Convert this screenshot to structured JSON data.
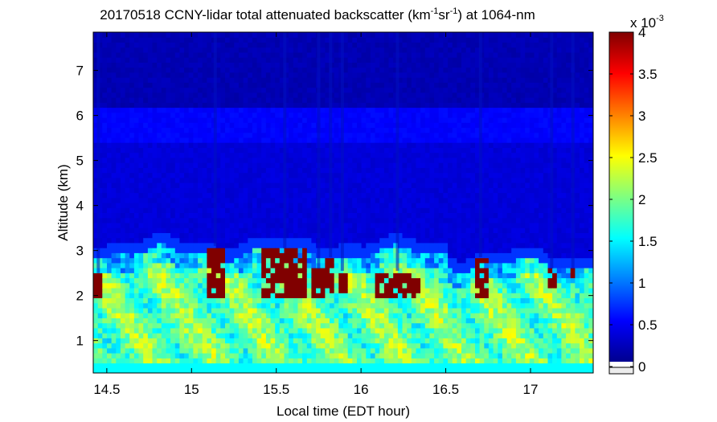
{
  "chart_data": {
    "type": "heatmap",
    "title": {
      "main": "20170518 CCNY-lidar total attenuated backscatter (km",
      "sup1": "-1",
      "mid": "sr",
      "sup2": "-1",
      "tail": ") at 1064-nm"
    },
    "xlabel": "Local time (EDT hour)",
    "ylabel": "Altitude (km)",
    "xlim": [
      14.42,
      17.37
    ],
    "ylim": [
      0.28,
      7.85
    ],
    "xticks": [
      14.5,
      15,
      15.5,
      16,
      16.5,
      17
    ],
    "xtick_labels": [
      "14.5",
      "15",
      "15.5",
      "16",
      "16.5",
      "17"
    ],
    "yticks": [
      1,
      2,
      3,
      4,
      5,
      6,
      7
    ],
    "ytick_labels": [
      "1",
      "2",
      "3",
      "4",
      "5",
      "6",
      "7"
    ],
    "colorbar": {
      "min": 0,
      "max": 0.004,
      "ticks": [
        0,
        0.0005,
        0.001,
        0.0015,
        0.002,
        0.0025,
        0.003,
        0.0035,
        0.004
      ],
      "tick_labels": [
        "0",
        "0.5",
        "1",
        "1.5",
        "2",
        "2.5",
        "3",
        "3.5",
        "4"
      ],
      "exponent_base": "x 10",
      "exponent_power": "-3",
      "colormap": "jet"
    },
    "layers": {
      "boundary_layer_top_km": 2.95,
      "aerosol_layer_value": 0.0019,
      "free_troposphere_value": 0.00035,
      "upper_value": 0.0002,
      "cloud_base_km": 1.95,
      "cloud_top_km": 3.1
    },
    "cloud_events": [
      {
        "t_start": 14.43,
        "t_end": 14.47,
        "z_min": 2.0,
        "z_max": 2.5
      },
      {
        "t_start": 15.08,
        "t_end": 15.2,
        "z_min": 1.95,
        "z_max": 3.1
      },
      {
        "t_start": 15.42,
        "t_end": 15.68,
        "z_min": 2.0,
        "z_max": 3.05
      },
      {
        "t_start": 15.72,
        "t_end": 15.78,
        "z_min": 2.0,
        "z_max": 2.6
      },
      {
        "t_start": 15.79,
        "t_end": 15.85,
        "z_min": 2.1,
        "z_max": 2.85
      },
      {
        "t_start": 15.86,
        "t_end": 15.92,
        "z_min": 2.1,
        "z_max": 2.55
      },
      {
        "t_start": 16.07,
        "t_end": 16.36,
        "z_min": 2.0,
        "z_max": 2.55
      },
      {
        "t_start": 16.67,
        "t_end": 16.74,
        "z_min": 2.0,
        "z_max": 2.85
      },
      {
        "t_start": 17.1,
        "t_end": 17.15,
        "z_min": 2.2,
        "z_max": 2.6
      },
      {
        "t_start": 17.23,
        "t_end": 17.27,
        "z_min": 2.4,
        "z_max": 2.6
      }
    ]
  }
}
